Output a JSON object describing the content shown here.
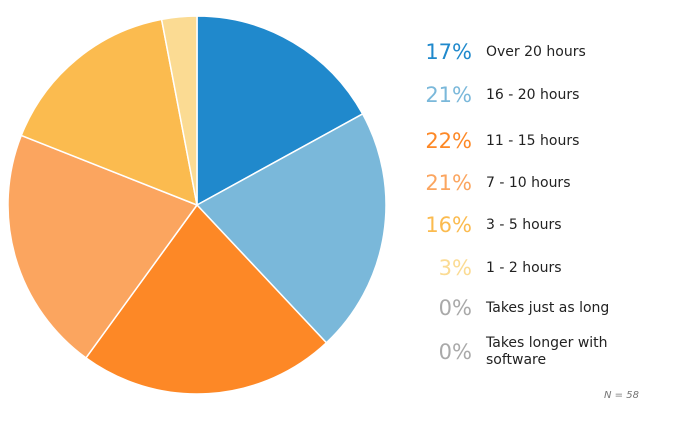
{
  "chart_data": {
    "type": "pie",
    "title": "",
    "slices": [
      {
        "label": "Over 20 hours",
        "value": 17,
        "pct_text": "17%",
        "color": "#2089cc"
      },
      {
        "label": "16 - 20 hours",
        "value": 21,
        "pct_text": "21%",
        "color": "#7ab8da"
      },
      {
        "label": "11 - 15 hours",
        "value": 22,
        "pct_text": "22%",
        "color": "#fd8826"
      },
      {
        "label": "7 - 10 hours",
        "value": 21,
        "pct_text": "21%",
        "color": "#fba55f"
      },
      {
        "label": "3 - 5 hours",
        "value": 16,
        "pct_text": "16%",
        "color": "#fbbb4f"
      },
      {
        "label": "1 - 2 hours",
        "value": 3,
        "pct_text": "3%",
        "color": "#fbdb93"
      },
      {
        "label": "Takes just as long",
        "value": 0,
        "pct_text": "0%",
        "color": "#a9a9a9"
      },
      {
        "label": "Takes longer with software",
        "value": 0,
        "pct_text": "0%",
        "color": "#a9a9a9"
      }
    ],
    "legend_position": "right",
    "note": "N = 58"
  }
}
